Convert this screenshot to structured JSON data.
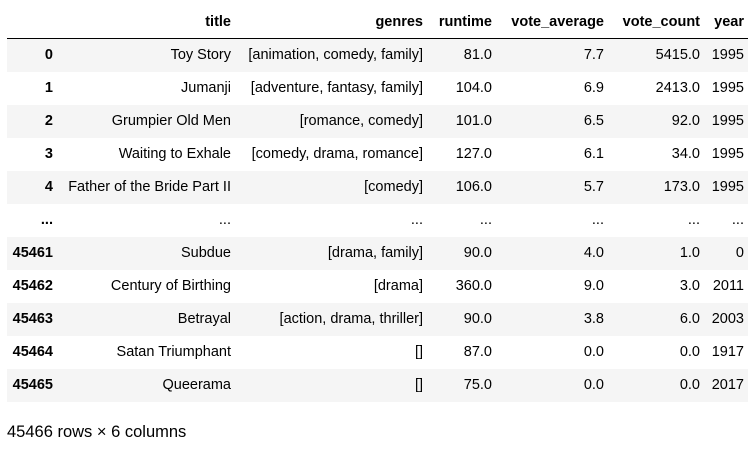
{
  "table": {
    "columns": [
      "title",
      "genres",
      "runtime",
      "vote_average",
      "vote_count",
      "year"
    ],
    "rows": [
      {
        "index": "0",
        "cells": [
          "Toy Story",
          "[animation, comedy, family]",
          "81.0",
          "7.7",
          "5415.0",
          "1995"
        ]
      },
      {
        "index": "1",
        "cells": [
          "Jumanji",
          "[adventure, fantasy, family]",
          "104.0",
          "6.9",
          "2413.0",
          "1995"
        ]
      },
      {
        "index": "2",
        "cells": [
          "Grumpier Old Men",
          "[romance, comedy]",
          "101.0",
          "6.5",
          "92.0",
          "1995"
        ]
      },
      {
        "index": "3",
        "cells": [
          "Waiting to Exhale",
          "[comedy, drama, romance]",
          "127.0",
          "6.1",
          "34.0",
          "1995"
        ]
      },
      {
        "index": "4",
        "cells": [
          "Father of the Bride Part II",
          "[comedy]",
          "106.0",
          "5.7",
          "173.0",
          "1995"
        ]
      },
      {
        "index": "...",
        "cells": [
          "...",
          "...",
          "...",
          "...",
          "...",
          "..."
        ]
      },
      {
        "index": "45461",
        "cells": [
          "Subdue",
          "[drama, family]",
          "90.0",
          "4.0",
          "1.0",
          "0"
        ]
      },
      {
        "index": "45462",
        "cells": [
          "Century of Birthing",
          "[drama]",
          "360.0",
          "9.0",
          "3.0",
          "2011"
        ]
      },
      {
        "index": "45463",
        "cells": [
          "Betrayal",
          "[action, drama, thriller]",
          "90.0",
          "3.8",
          "6.0",
          "2003"
        ]
      },
      {
        "index": "45464",
        "cells": [
          "Satan Triumphant",
          "[]",
          "87.0",
          "0.0",
          "0.0",
          "1917"
        ]
      },
      {
        "index": "45465",
        "cells": [
          "Queerama",
          "[]",
          "75.0",
          "0.0",
          "0.0",
          "2017"
        ]
      }
    ]
  },
  "footer": {
    "shape_text": "45466 rows × 6 columns"
  }
}
